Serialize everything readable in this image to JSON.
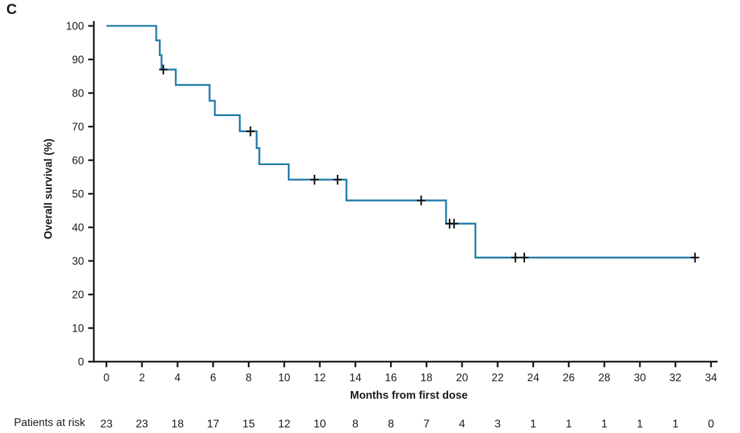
{
  "figure": {
    "panel_label": "C",
    "background_color": "#ffffff"
  },
  "chart_data": {
    "type": "line",
    "subtype": "kaplan_meier_step_curve",
    "title": "",
    "xlabel": "Months from first dose",
    "ylabel": "Overall survival (%)",
    "xlim": [
      0,
      34
    ],
    "ylim": [
      0,
      100
    ],
    "xticks": [
      0,
      2,
      4,
      6,
      8,
      10,
      12,
      14,
      16,
      18,
      20,
      22,
      24,
      26,
      28,
      30,
      32,
      34
    ],
    "yticks": [
      0,
      10,
      20,
      30,
      40,
      50,
      60,
      70,
      80,
      90,
      100
    ],
    "grid": "off",
    "legend": "none",
    "line_color": "#217da9",
    "axis_color": "#1a1a1a",
    "censor_color": "#111111",
    "series": [
      {
        "name": "Overall survival",
        "steps": [
          {
            "t": 0,
            "s": 100
          },
          {
            "t": 2.8,
            "s": 95.7
          },
          {
            "t": 3.0,
            "s": 91.3
          },
          {
            "t": 3.1,
            "s": 87.0
          },
          {
            "t": 3.9,
            "s": 82.4
          },
          {
            "t": 5.8,
            "s": 77.7
          },
          {
            "t": 6.1,
            "s": 73.4
          },
          {
            "t": 7.5,
            "s": 68.6
          },
          {
            "t": 8.45,
            "s": 63.6
          },
          {
            "t": 8.6,
            "s": 58.8
          },
          {
            "t": 10.25,
            "s": 54.2
          },
          {
            "t": 13.5,
            "s": 48.0
          },
          {
            "t": 19.1,
            "s": 41.1
          },
          {
            "t": 20.75,
            "s": 31.0
          }
        ],
        "end_time": 33.1,
        "censors": [
          {
            "t": 3.2,
            "s": 87.0
          },
          {
            "t": 8.1,
            "s": 68.6
          },
          {
            "t": 11.7,
            "s": 54.2
          },
          {
            "t": 13.0,
            "s": 54.2
          },
          {
            "t": 17.7,
            "s": 48.0
          },
          {
            "t": 19.3,
            "s": 41.1
          },
          {
            "t": 19.55,
            "s": 41.1
          },
          {
            "t": 23.0,
            "s": 31.0
          },
          {
            "t": 23.5,
            "s": 31.0
          },
          {
            "t": 33.1,
            "s": 31.0
          }
        ]
      }
    ],
    "patients_at_risk": {
      "label": "Patients at risk",
      "times": [
        0,
        2,
        4,
        6,
        8,
        10,
        12,
        14,
        16,
        18,
        20,
        22,
        24,
        26,
        28,
        30,
        32,
        34
      ],
      "counts": [
        23,
        23,
        18,
        17,
        15,
        12,
        10,
        8,
        8,
        7,
        4,
        3,
        1,
        1,
        1,
        1,
        1,
        0
      ]
    }
  }
}
